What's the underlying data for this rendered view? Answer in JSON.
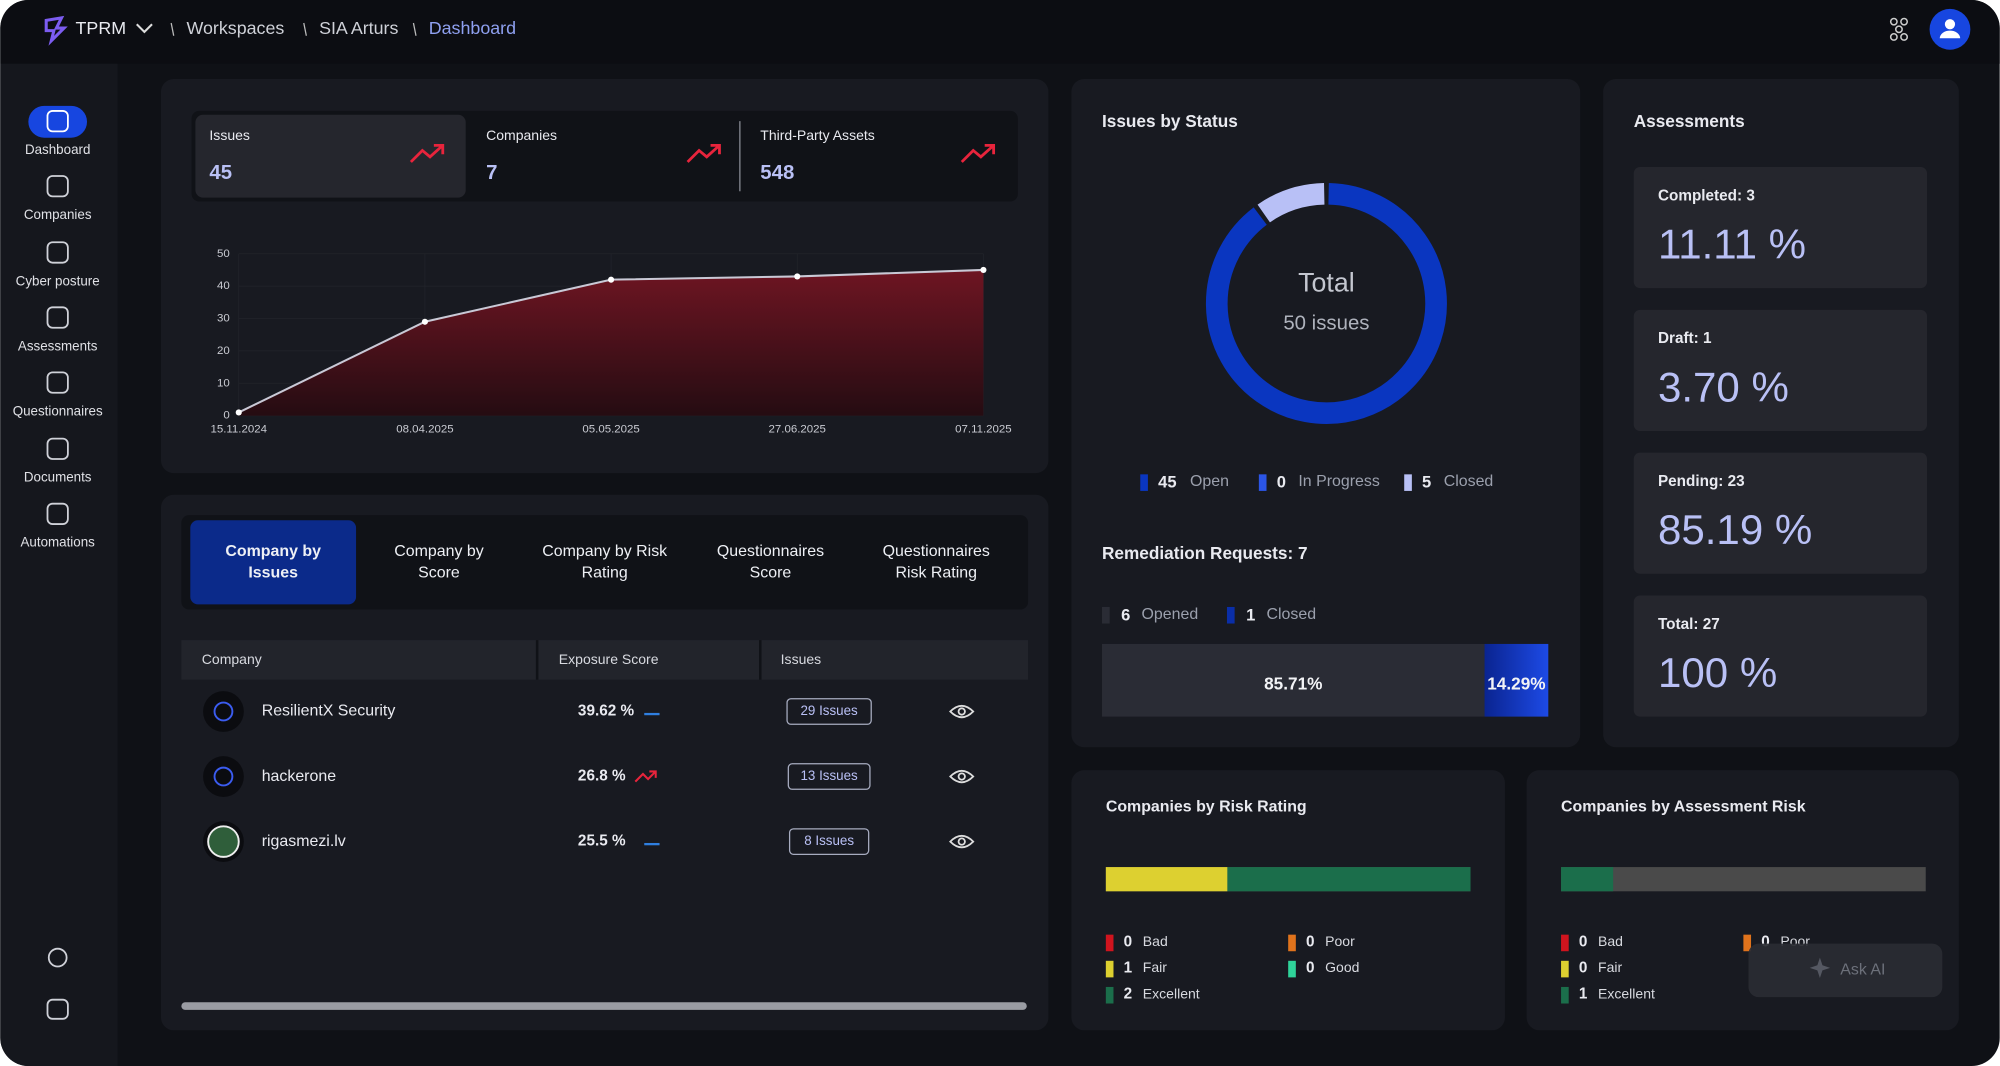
{
  "header": {
    "brand": "TPRM",
    "breadcrumbs": [
      "Workspaces",
      "SIA Arturs",
      "Dashboard"
    ]
  },
  "sidebar": {
    "items": [
      "Dashboard",
      "Companies",
      "Cyber posture",
      "Assessments",
      "Questionnaires",
      "Documents",
      "Automations"
    ]
  },
  "kpis": [
    {
      "label": "Issues",
      "value": 45
    },
    {
      "label": "Companies",
      "value": 7
    },
    {
      "label": "Third-Party Assets",
      "value": 548
    }
  ],
  "trend_chart": {
    "type": "area",
    "categories": [
      "15.11.2024",
      "08.04.2025",
      "05.05.2025",
      "27.06.2025",
      "07.11.2025"
    ],
    "values": [
      1,
      29,
      42,
      43,
      45
    ],
    "ylim": [
      0,
      50
    ],
    "yticks": [
      0,
      10,
      20,
      30,
      40,
      50
    ],
    "grid": true,
    "color": "#c9c9d6"
  },
  "tabs": [
    "Company by Issues",
    "Company by Score",
    "Company by Risk Rating",
    "Questionnaires Score",
    "Questionnaires Risk Rating"
  ],
  "table": {
    "columns": [
      "Company",
      "Exposure Score",
      "Issues"
    ],
    "rows": [
      [
        "ResilientX Security",
        "39.62 %",
        "29 Issues"
      ],
      [
        "hackerone",
        "26.8 %",
        "13 Issues"
      ],
      [
        "rigasmezi.lv",
        "25.5 %",
        "8 Issues"
      ]
    ]
  },
  "issues_by_status": {
    "type": "pie",
    "title": "Issues by Status",
    "center_title": "Total",
    "center_subtitle": "50 issues",
    "categories": [
      "Open",
      "In Progress",
      "Closed"
    ],
    "values": [
      45,
      0,
      5
    ],
    "colors": [
      "#0a36c0",
      "#2b55e6",
      "#b8c0f6"
    ]
  },
  "remediation": {
    "type": "stacked_bar",
    "title": "Remediation Requests: 7",
    "categories": [
      "Opened",
      "Closed"
    ],
    "values": [
      6,
      1
    ],
    "value_labels": [
      "85.71%",
      "14.29%"
    ],
    "colors": [
      "#2a2c35",
      "#0a2ea8"
    ]
  },
  "assessments": {
    "title": "Assessments",
    "cards": [
      {
        "label": "Completed: 3",
        "value": "11.11 %"
      },
      {
        "label": "Draft: 1",
        "value": "3.70 %"
      },
      {
        "label": "Pending: 23",
        "value": "85.19 %"
      },
      {
        "label": "Total: 27",
        "value": "100 %"
      }
    ]
  },
  "risk_rating": {
    "type": "stacked_bar",
    "title": "Companies by Risk Rating",
    "categories": [
      "Bad",
      "Poor",
      "Fair",
      "Good",
      "Excellent"
    ],
    "values": [
      0,
      0,
      1,
      0,
      2
    ],
    "colors": [
      "#d0141e",
      "#e0731c",
      "#ddd030",
      "#2fd39a",
      "#1b6e4b"
    ]
  },
  "assessment_risk": {
    "type": "stacked_bar",
    "title": "Companies by Assessment Risk",
    "categories": [
      "Bad",
      "Poor",
      "Fair",
      "Excellent"
    ],
    "values": [
      0,
      0,
      0,
      1
    ],
    "colors": [
      "#d0141e",
      "#e0731c",
      "#ddd030",
      "#1b6e4b"
    ]
  },
  "ask_ai": "Ask AI"
}
